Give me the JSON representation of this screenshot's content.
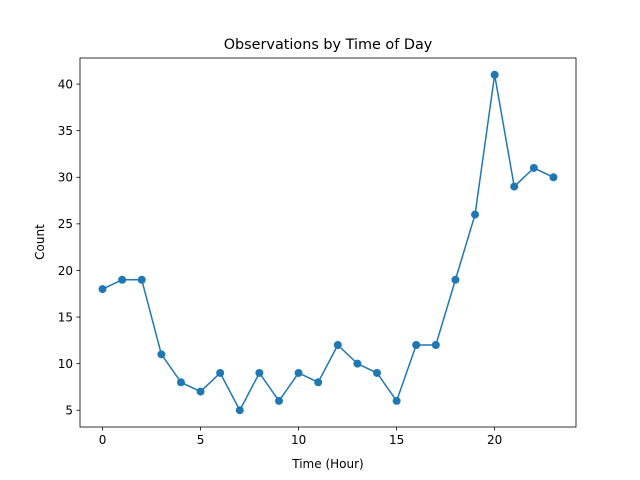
{
  "chart_data": {
    "type": "line",
    "title": "Observations by Time of Day",
    "xlabel": "Time (Hour)",
    "ylabel": "Count",
    "xlim": [
      -1.15,
      24.15
    ],
    "ylim": [
      3.2,
      42.8
    ],
    "xticks": [
      0,
      5,
      10,
      15,
      20
    ],
    "yticks": [
      5,
      10,
      15,
      20,
      25,
      30,
      35,
      40
    ],
    "grid": false,
    "series": [
      {
        "color": "#1f77b4",
        "marker": "circle",
        "x": [
          0,
          1,
          2,
          3,
          4,
          5,
          6,
          7,
          8,
          9,
          10,
          11,
          12,
          13,
          14,
          15,
          16,
          17,
          18,
          19,
          20,
          21,
          22,
          23
        ],
        "y": [
          18,
          19,
          19,
          11,
          8,
          7,
          9,
          5,
          9,
          6,
          9,
          8,
          12,
          10,
          9,
          6,
          12,
          12,
          19,
          26,
          41,
          29,
          31,
          30
        ]
      }
    ]
  }
}
